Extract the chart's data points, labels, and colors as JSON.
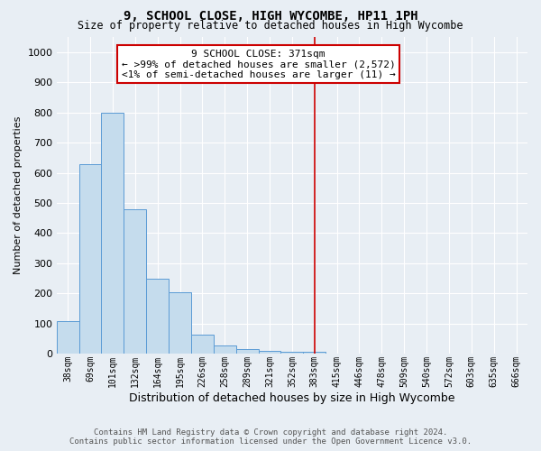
{
  "title": "9, SCHOOL CLOSE, HIGH WYCOMBE, HP11 1PH",
  "subtitle": "Size of property relative to detached houses in High Wycombe",
  "xlabel": "Distribution of detached houses by size in High Wycombe",
  "ylabel": "Number of detached properties",
  "footer_line1": "Contains HM Land Registry data © Crown copyright and database right 2024.",
  "footer_line2": "Contains public sector information licensed under the Open Government Licence v3.0.",
  "annotation_line1": "9 SCHOOL CLOSE: 371sqm",
  "annotation_line2": "← >99% of detached houses are smaller (2,572)",
  "annotation_line3": "<1% of semi-detached houses are larger (11) →",
  "bar_color": "#c5dced",
  "bar_edge_color": "#5b9bd5",
  "red_line_color": "#cc0000",
  "background_color": "#e8eef4",
  "grid_color": "#ffffff",
  "categories": [
    "38sqm",
    "69sqm",
    "101sqm",
    "132sqm",
    "164sqm",
    "195sqm",
    "226sqm",
    "258sqm",
    "289sqm",
    "321sqm",
    "352sqm",
    "383sqm",
    "415sqm",
    "446sqm",
    "478sqm",
    "509sqm",
    "540sqm",
    "572sqm",
    "603sqm",
    "635sqm",
    "666sqm"
  ],
  "values": [
    110,
    630,
    800,
    480,
    250,
    205,
    63,
    27,
    17,
    10,
    7,
    8,
    0,
    0,
    0,
    0,
    0,
    0,
    0,
    0,
    0
  ],
  "red_line_index": 11,
  "ylim": [
    0,
    1050
  ],
  "yticks": [
    0,
    100,
    200,
    300,
    400,
    500,
    600,
    700,
    800,
    900,
    1000
  ],
  "annotation_box_facecolor": "#ffffff",
  "annotation_box_edgecolor": "#cc0000",
  "title_fontsize": 10,
  "subtitle_fontsize": 8.5,
  "ylabel_fontsize": 8,
  "xlabel_fontsize": 9,
  "tick_fontsize": 8,
  "xtick_fontsize": 7,
  "annotation_fontsize": 8,
  "footer_fontsize": 6.5
}
